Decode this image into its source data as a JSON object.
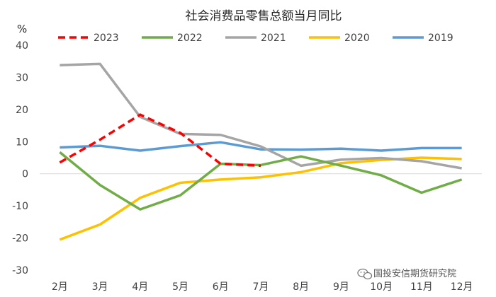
{
  "chart_data": {
    "type": "line",
    "title": "社会消费品零售总额当月同比",
    "ylabel": "%",
    "ylim": [
      -30,
      40
    ],
    "yticks": [
      40,
      30,
      20,
      10,
      0,
      -10,
      -20,
      -30
    ],
    "categories": [
      "2月",
      "3月",
      "4月",
      "5月",
      "6月",
      "7月",
      "8月",
      "9月",
      "10月",
      "11月",
      "12月"
    ],
    "legend_position": "top",
    "series": [
      {
        "name": "2023",
        "color": "#ff0000",
        "dashed": true,
        "values": [
          3.5,
          10.6,
          18.4,
          12.7,
          3.1,
          2.5,
          null,
          null,
          null,
          null,
          null
        ]
      },
      {
        "name": "2022",
        "color": "#70ad47",
        "dashed": false,
        "values": [
          6.7,
          -3.5,
          -11.1,
          -6.7,
          3.1,
          2.7,
          5.4,
          2.5,
          -0.5,
          -5.9,
          -1.8
        ]
      },
      {
        "name": "2021",
        "color": "#a5a5a5",
        "dashed": false,
        "values": [
          33.8,
          34.2,
          17.7,
          12.4,
          12.1,
          8.5,
          2.5,
          4.4,
          4.9,
          3.9,
          1.7
        ]
      },
      {
        "name": "2020",
        "color": "#ffc000",
        "dashed": false,
        "values": [
          -20.5,
          -15.8,
          -7.5,
          -2.8,
          -1.8,
          -1.1,
          0.5,
          3.3,
          4.3,
          5.0,
          4.6
        ]
      },
      {
        "name": "2019",
        "color": "#5b9bd5",
        "dashed": false,
        "values": [
          8.2,
          8.7,
          7.2,
          8.6,
          9.8,
          7.6,
          7.5,
          7.8,
          7.2,
          8.0,
          8.0
        ]
      }
    ]
  },
  "watermark": {
    "text": "国投安信期货研究院",
    "icon": "wechat-icon"
  }
}
